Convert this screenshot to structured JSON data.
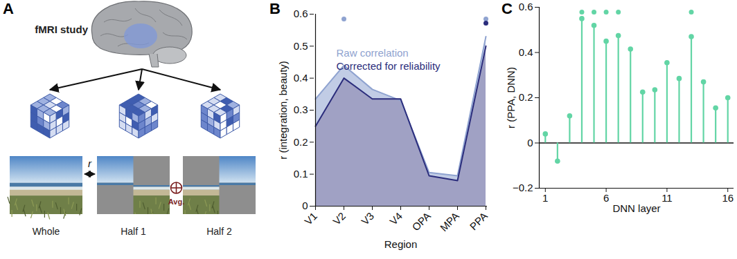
{
  "chart_data": [
    {
      "type": "area",
      "title": "B",
      "x_label": "Region",
      "y_label": "r (integration, beauty)",
      "categories": [
        "V1",
        "V2",
        "V3",
        "V4",
        "OPA",
        "MPA",
        "PPA"
      ],
      "series": [
        {
          "name": "Raw correlation",
          "color": "#8fa3d0",
          "values": [
            0.335,
            0.44,
            0.365,
            0.33,
            0.105,
            0.095,
            0.53
          ],
          "significant": [
            false,
            true,
            false,
            false,
            false,
            false,
            true
          ]
        },
        {
          "name": "Corrected for reliability",
          "color": "#2b2d7c",
          "values": [
            0.25,
            0.4,
            0.335,
            0.335,
            0.095,
            0.08,
            0.5
          ],
          "significant": [
            false,
            false,
            false,
            false,
            false,
            false,
            true
          ]
        }
      ],
      "ylim": [
        0,
        0.6
      ],
      "yticks": [
        0,
        0.1,
        0.2,
        0.3,
        0.4,
        0.5,
        0.6
      ],
      "legend": "top-left"
    },
    {
      "type": "stem",
      "title": "C",
      "x_label": "DNN layer",
      "y_label": "r (PPA, DNN)",
      "x": [
        1,
        2,
        3,
        4,
        5,
        6,
        7,
        8,
        9,
        10,
        11,
        12,
        13,
        14,
        15,
        16
      ],
      "values": [
        0.04,
        -0.08,
        0.12,
        0.55,
        0.52,
        0.45,
        0.475,
        0.415,
        0.225,
        0.235,
        0.355,
        0.285,
        0.47,
        0.27,
        0.155,
        0.2
      ],
      "significant": [
        false,
        false,
        false,
        true,
        true,
        true,
        true,
        false,
        false,
        false,
        false,
        false,
        true,
        false,
        false,
        false
      ],
      "color": "#62d5a5",
      "marker": "circle",
      "xlim": [
        0.5,
        16.5
      ],
      "xticks": [
        1,
        6,
        11,
        16
      ],
      "ylim": [
        -0.2,
        0.6
      ],
      "yticks": [
        {
          "value": -0.2,
          "label": "−0.2"
        },
        0,
        0.2,
        0.4,
        0.6
      ]
    }
  ],
  "diagram": {
    "title": "A",
    "label": "fMRI study",
    "images": [
      {
        "label": "Whole"
      },
      {
        "label": "Half 1"
      },
      {
        "label": "Half 2"
      }
    ],
    "comparison": "r",
    "combine": "Avg."
  }
}
